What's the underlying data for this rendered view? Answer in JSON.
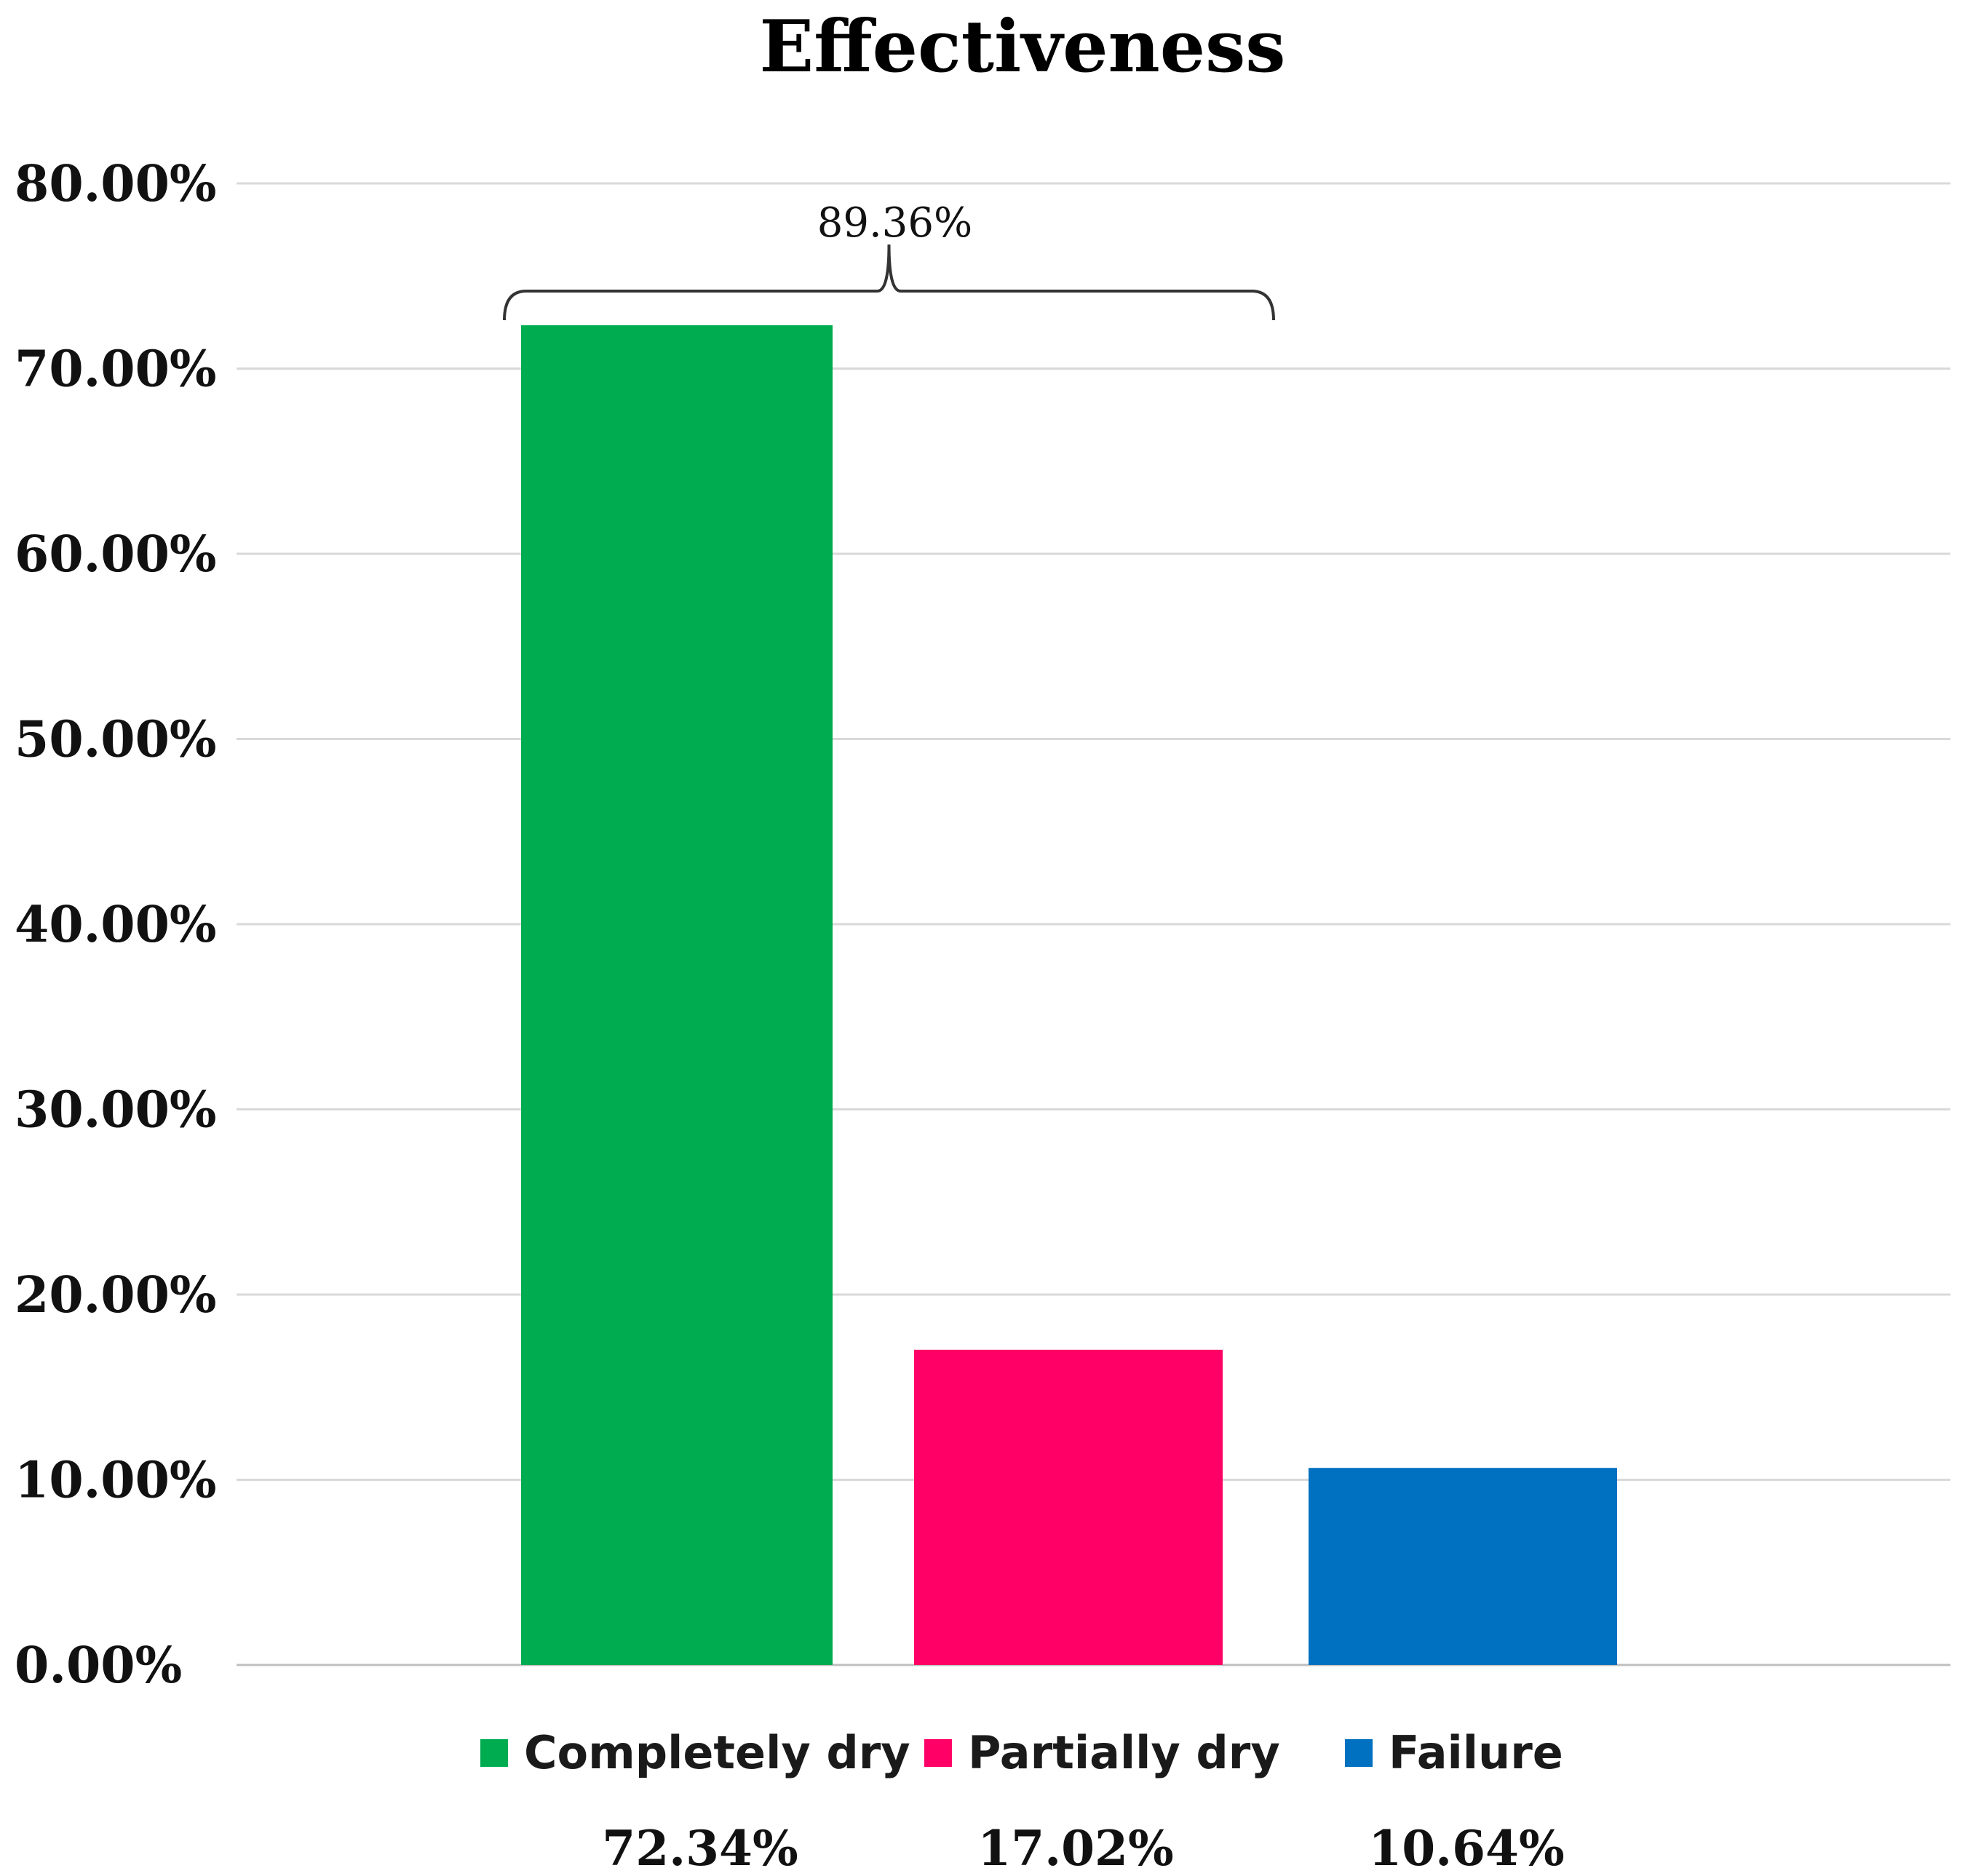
{
  "chart_data": {
    "type": "bar",
    "title": "Effectiveness",
    "categories": [
      "Completely dry",
      "Partially dry",
      "Failure"
    ],
    "values": [
      72.34,
      17.02,
      10.64
    ],
    "value_labels": [
      "72.34%",
      "17.02%",
      "10.64%"
    ],
    "colors": [
      "#00ac50",
      "#ff0066",
      "#0070c0"
    ],
    "ylim": [
      0,
      80
    ],
    "yticks": [
      0,
      10,
      20,
      30,
      40,
      50,
      60,
      70,
      80
    ],
    "ytick_labels": [
      "0.00%",
      "10.00%",
      "20.00%",
      "30.00%",
      "40.00%",
      "50.00%",
      "60.00%",
      "70.00%",
      "80.00%"
    ],
    "xlabel": "",
    "ylabel": "",
    "grid": true,
    "legend": {
      "placement": "bottom",
      "entries": [
        "Completely dry",
        "Partially dry",
        "Failure"
      ]
    },
    "annotations": [
      {
        "type": "bracket",
        "spans": [
          "Completely dry",
          "Partially dry"
        ],
        "text": "89.36%"
      }
    ]
  }
}
